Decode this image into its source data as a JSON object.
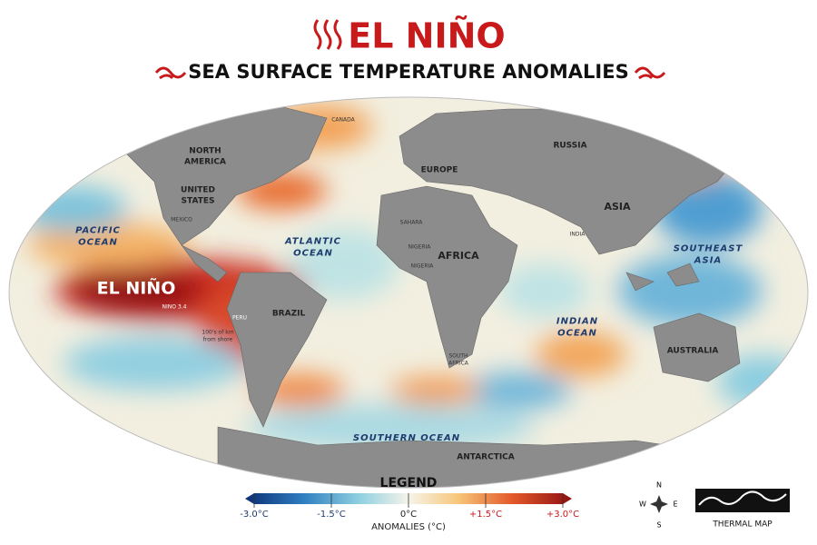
{
  "header": {
    "title": "EL NIÑO",
    "subtitle": "SEA SURFACE TEMPERATURE ANOMALIES"
  },
  "map": {
    "labels": [
      {
        "lines": [
          "CANADA"
        ]
      },
      {
        "lines": [
          "NORTH",
          "AMERICA"
        ]
      },
      {
        "lines": [
          "UNITED",
          "STATES"
        ]
      },
      {
        "lines": [
          "MEXICO"
        ]
      },
      {
        "lines": [
          "PACIFIC",
          "OCEAN"
        ]
      },
      {
        "lines": [
          "ATLANTIC",
          "OCEAN"
        ]
      },
      {
        "lines": [
          "EL NIÑO"
        ]
      },
      {
        "lines": [
          "NINO 3.4"
        ]
      },
      {
        "lines": [
          "PERU"
        ]
      },
      {
        "lines": [
          "100's of km",
          "from shore"
        ]
      },
      {
        "lines": [
          "BRAZIL"
        ]
      },
      {
        "lines": [
          "SAHARA"
        ]
      },
      {
        "lines": [
          "NIGERIA"
        ]
      },
      {
        "lines": [
          "NIGERIA"
        ]
      },
      {
        "lines": [
          "AFRICA"
        ]
      },
      {
        "lines": [
          "SOUTH",
          "AFRICA"
        ]
      },
      {
        "lines": [
          "EUROPE"
        ]
      },
      {
        "lines": [
          "RUSSIA"
        ]
      },
      {
        "lines": [
          "ASIA"
        ]
      },
      {
        "lines": [
          "INDIA"
        ]
      },
      {
        "lines": [
          "SOUTHEAST",
          "ASIA"
        ]
      },
      {
        "lines": [
          "INDIAN",
          "OCEAN"
        ]
      },
      {
        "lines": [
          "AUSTRALIA"
        ]
      },
      {
        "lines": [
          "SOUTHERN OCEAN"
        ]
      },
      {
        "lines": [
          "ANTARCTICA"
        ]
      }
    ]
  },
  "legend": {
    "title": "LEGEND",
    "axis_label": "ANOMALIES (°C)",
    "range": [
      -3,
      3
    ],
    "ticks": [
      {
        "value": -3,
        "label": "-3.0°C"
      },
      {
        "value": -1.5,
        "label": "-1.5°C"
      },
      {
        "value": 0,
        "label": "0°C"
      },
      {
        "value": 1.5,
        "label": "+1.5°C"
      },
      {
        "value": 3,
        "label": "+3.0°C"
      }
    ]
  },
  "compass": {
    "n": "N",
    "s": "S",
    "e": "E",
    "w": "W"
  },
  "badge": "THERMAL MAP"
}
